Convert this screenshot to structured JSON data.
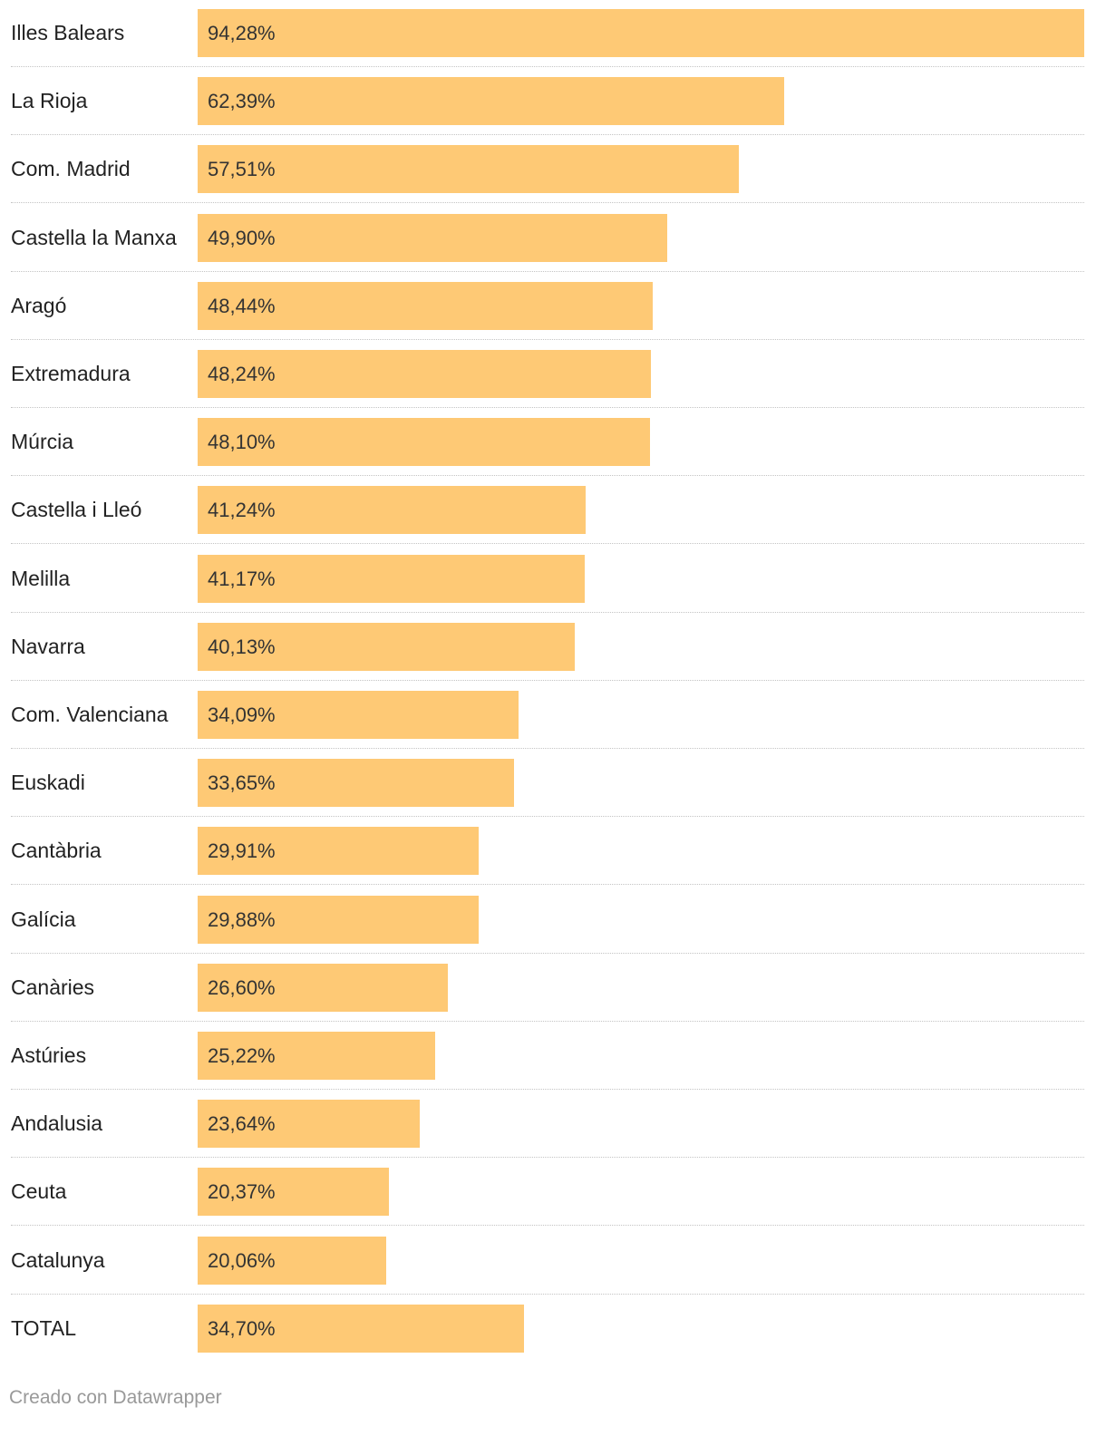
{
  "colors": {
    "bar": "#fec975",
    "text": "#222222",
    "footer": "#999999"
  },
  "chart_data": {
    "type": "bar",
    "orientation": "horizontal",
    "title": "",
    "xlabel": "",
    "ylabel": "",
    "xlim": [
      0,
      94.28
    ],
    "categories": [
      "Illes Balears",
      "La Rioja",
      "Com. Madrid",
      "Castella la Manxa",
      "Aragó",
      "Extremadura",
      "Múrcia",
      "Castella i Lleó",
      "Melilla",
      "Navarra",
      "Com. Valenciana",
      "Euskadi",
      "Cantàbria",
      "Galícia",
      "Canàries",
      "Astúries",
      "Andalusia",
      "Ceuta",
      "Catalunya",
      "TOTAL"
    ],
    "values": [
      94.28,
      62.39,
      57.51,
      49.9,
      48.44,
      48.24,
      48.1,
      41.24,
      41.17,
      40.13,
      34.09,
      33.65,
      29.91,
      29.88,
      26.6,
      25.22,
      23.64,
      20.37,
      20.06,
      34.7
    ],
    "value_labels": [
      "94,28%",
      "62,39%",
      "57,51%",
      "49,90%",
      "48,44%",
      "48,24%",
      "48,10%",
      "41,24%",
      "41,17%",
      "40,13%",
      "34,09%",
      "33,65%",
      "29,91%",
      "29,88%",
      "26,60%",
      "25,22%",
      "23,64%",
      "20,37%",
      "20,06%",
      "34,70%"
    ]
  },
  "footer": {
    "credit": "Creado con Datawrapper"
  }
}
